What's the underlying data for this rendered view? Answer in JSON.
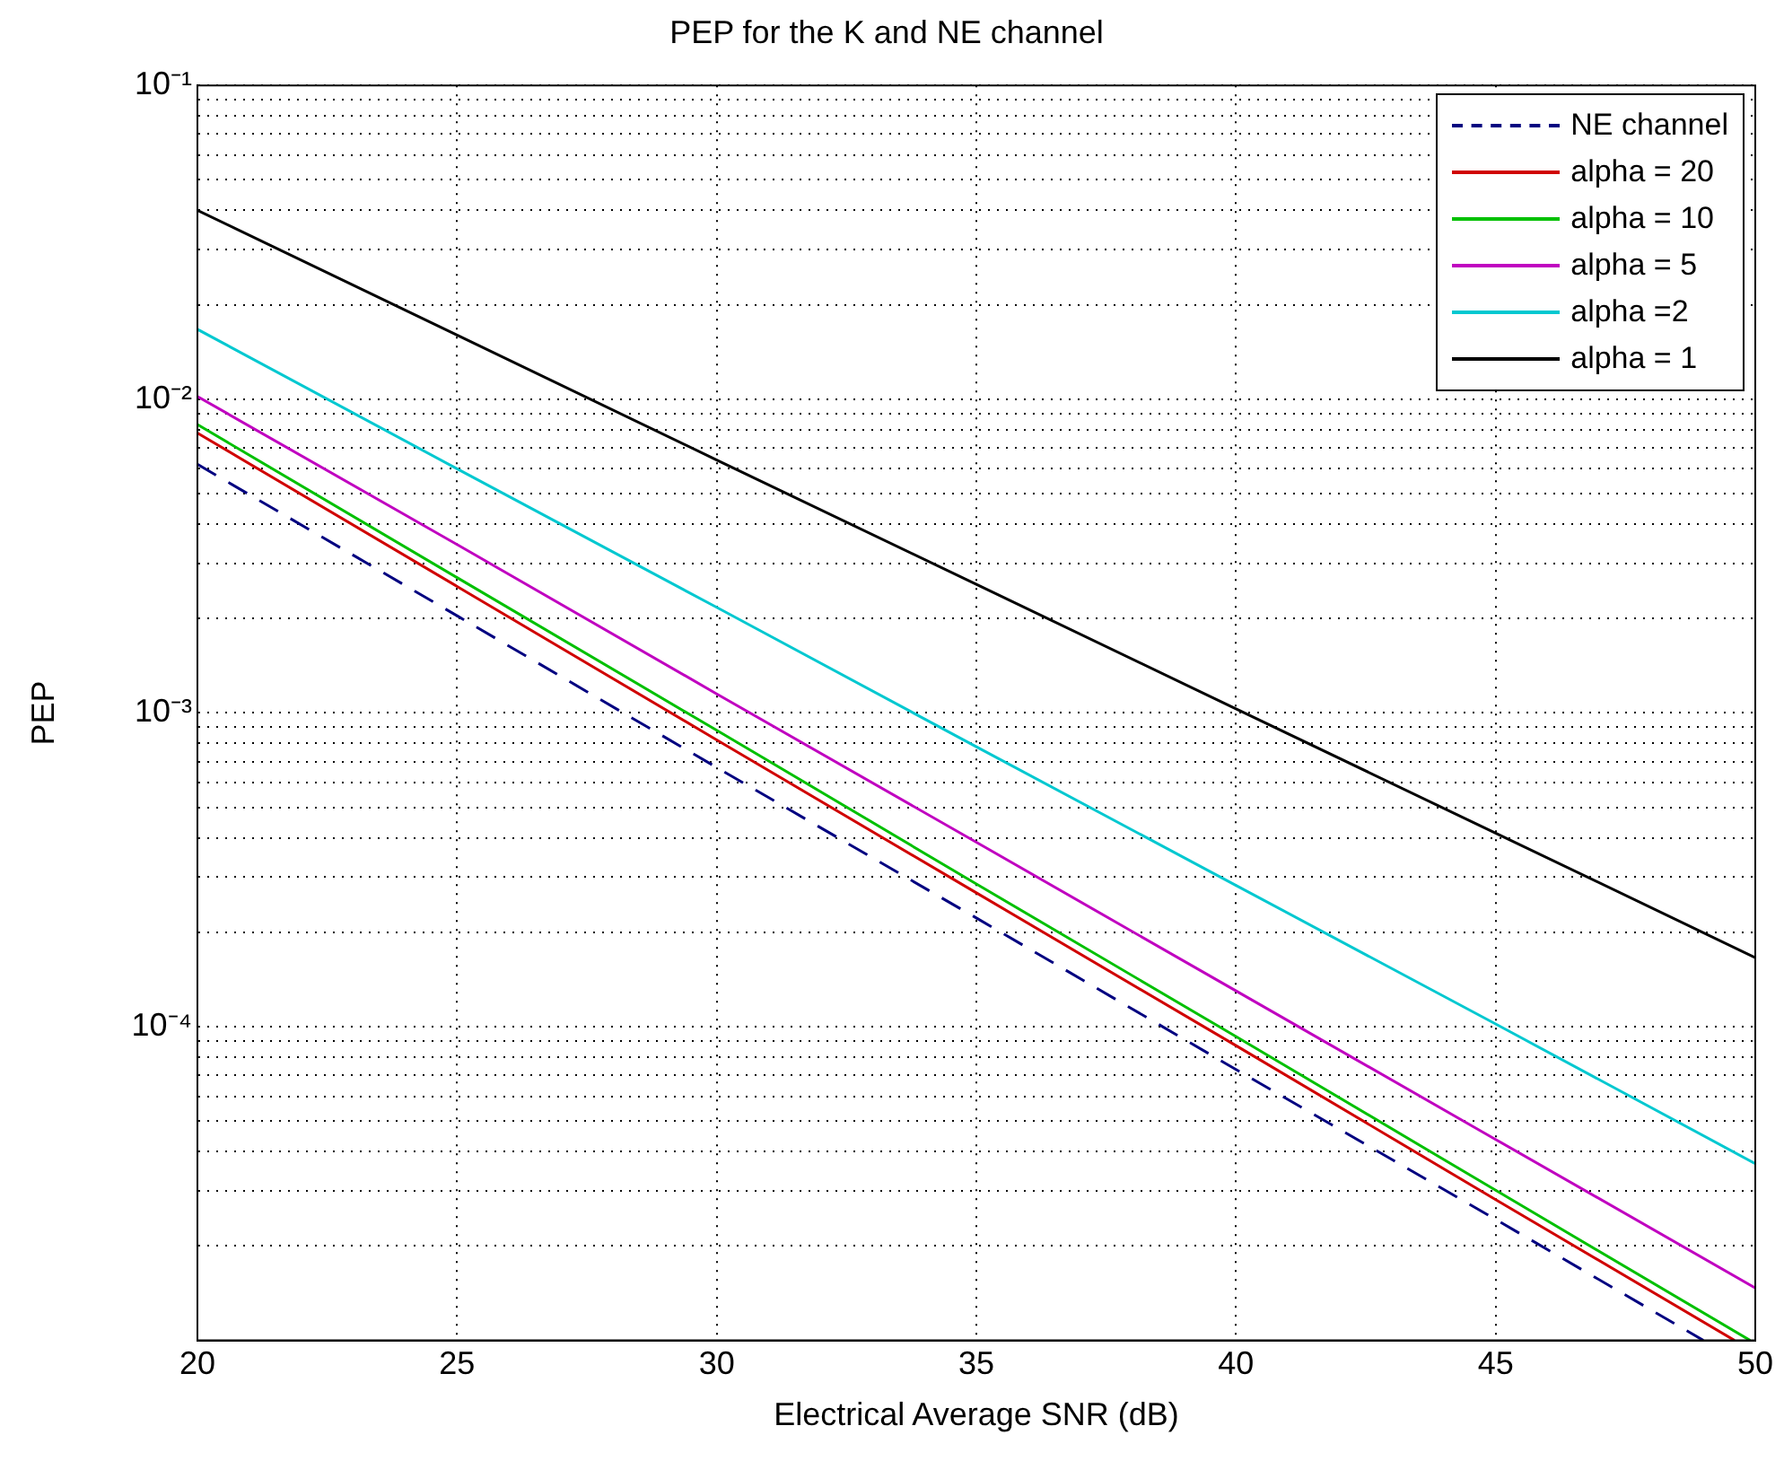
{
  "chart_data": {
    "type": "line",
    "title": "PEP for the K and NE channel",
    "xlabel": "Electrical Average SNR (dB)",
    "ylabel": "PEP",
    "log": "y",
    "grid": true,
    "legend": "top right",
    "x": [
      20,
      25,
      30,
      35,
      40,
      45,
      50
    ],
    "xlim": [
      20,
      50
    ],
    "xticks": [
      20,
      25,
      30,
      35,
      40,
      45,
      50
    ],
    "ylim": [
      1e-05,
      0.1
    ],
    "yticks": [
      {
        "value": 2e-05,
        "label": null
      },
      {
        "value": 3e-05,
        "label": null
      },
      {
        "value": 4e-05,
        "label": null
      },
      {
        "value": 5e-05,
        "label": null
      },
      {
        "value": 6e-05,
        "label": null
      },
      {
        "value": 7e-05,
        "label": null
      },
      {
        "value": 8e-05,
        "label": null
      },
      {
        "value": 9e-05,
        "label": null
      },
      {
        "value": 0.0001,
        "label": "10⁻⁴"
      },
      {
        "value": 0.0002,
        "label": null
      },
      {
        "value": 0.0003,
        "label": null
      },
      {
        "value": 0.0004,
        "label": null
      },
      {
        "value": 0.0005,
        "label": null
      },
      {
        "value": 0.0006,
        "label": null
      },
      {
        "value": 0.0007,
        "label": null
      },
      {
        "value": 0.0008,
        "label": null
      },
      {
        "value": 0.0009,
        "label": null
      },
      {
        "value": 0.001,
        "label": "10⁻³"
      },
      {
        "value": 0.002,
        "label": null
      },
      {
        "value": 0.003,
        "label": null
      },
      {
        "value": 0.004,
        "label": null
      },
      {
        "value": 0.005,
        "label": null
      },
      {
        "value": 0.006,
        "label": null
      },
      {
        "value": 0.007,
        "label": null
      },
      {
        "value": 0.008,
        "label": null
      },
      {
        "value": 0.009,
        "label": null
      },
      {
        "value": 0.01,
        "label": "10⁻²"
      },
      {
        "value": 0.02,
        "label": null
      },
      {
        "value": 0.03,
        "label": null
      },
      {
        "value": 0.04,
        "label": null
      },
      {
        "value": 0.05,
        "label": null
      },
      {
        "value": 0.06,
        "label": null
      },
      {
        "value": 0.07,
        "label": null
      },
      {
        "value": 0.08,
        "label": null
      },
      {
        "value": 0.09,
        "label": null
      },
      {
        "value": 0.1,
        "label": "10⁻¹"
      }
    ],
    "series": [
      {
        "name": "NE channel",
        "color": "#000080",
        "line_style": "dashed",
        "x": [
          20,
          25,
          30,
          35,
          40,
          45,
          49
        ],
        "values": [
          0.0062,
          0.00204,
          0.00067,
          0.000222,
          7.3e-05,
          2.43e-05,
          1e-05
        ]
      },
      {
        "name": "alpha = 20",
        "color": "#d00000",
        "line_style": "solid",
        "x": [
          20,
          25,
          30,
          35,
          40,
          45,
          49.6
        ],
        "values": [
          0.0078,
          0.00253,
          0.00082,
          0.000267,
          8.7e-05,
          2.81e-05,
          1e-05
        ]
      },
      {
        "name": "alpha = 10",
        "color": "#00c000",
        "line_style": "solid",
        "x": [
          20,
          25,
          30,
          35,
          40,
          45,
          49.9
        ],
        "values": [
          0.0083,
          0.0027,
          0.00088,
          0.000285,
          9.3e-05,
          3.01e-05,
          1e-05
        ]
      },
      {
        "name": "alpha = 5",
        "color": "#c000c0",
        "line_style": "solid",
        "values": [
          0.0102,
          0.00344,
          0.00115,
          0.000387,
          0.00013,
          4.37e-05,
          1.47e-05
        ]
      },
      {
        "name": "alpha =2",
        "color": "#00c8d0",
        "line_style": "solid",
        "values": [
          0.0167,
          0.006,
          0.00217,
          0.00078,
          0.000282,
          0.000102,
          3.66e-05
        ]
      },
      {
        "name": "alpha = 1",
        "color": "#000000",
        "line_style": "solid",
        "values": [
          0.04,
          0.016,
          0.0064,
          0.00257,
          0.00103,
          0.000414,
          0.000166
        ]
      }
    ]
  }
}
